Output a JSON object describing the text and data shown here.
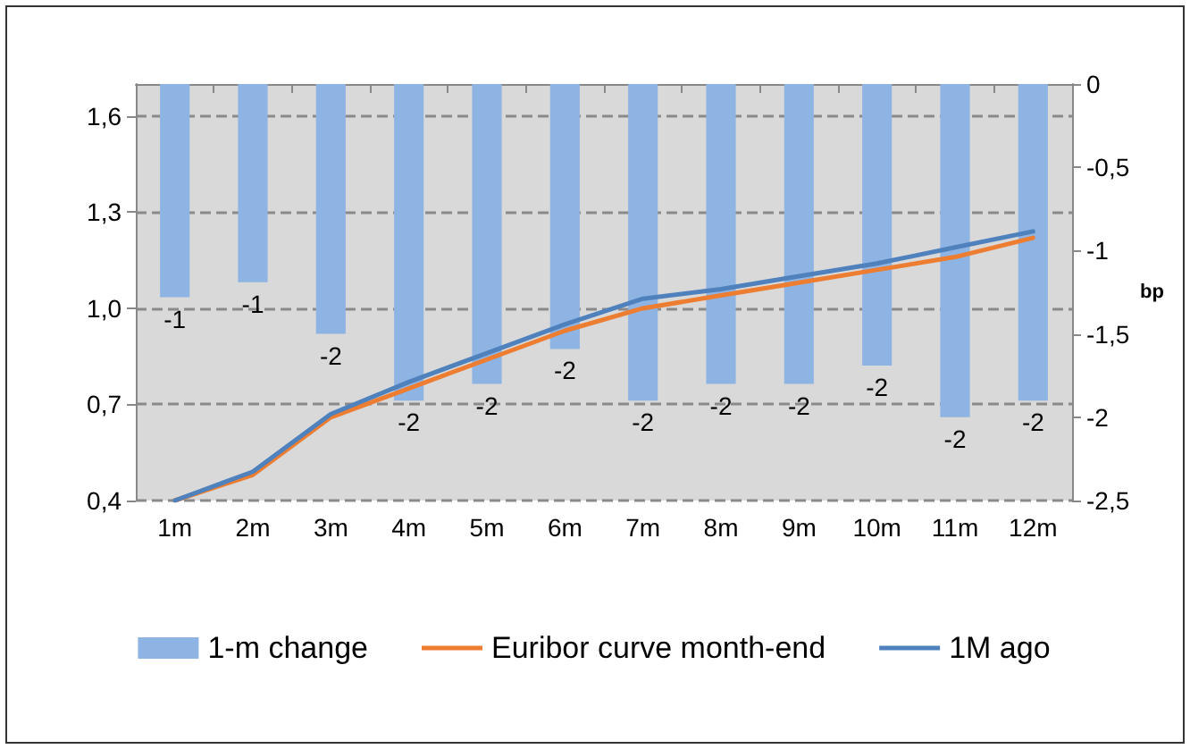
{
  "chart_data": {
    "type": "bar",
    "categories": [
      "1m",
      "2m",
      "3m",
      "4m",
      "5m",
      "6m",
      "7m",
      "8m",
      "9m",
      "10m",
      "11m",
      "12m"
    ],
    "series": [
      {
        "name": "1-m change",
        "axis": "y2",
        "color": "#8eb4e3",
        "values": [
          -1.28,
          -1.19,
          -1.5,
          -1.9,
          -1.8,
          -1.59,
          -1.9,
          -1.8,
          -1.8,
          -1.69,
          -2.0,
          -1.9
        ],
        "value_labels": [
          "-1",
          "-1",
          "-2",
          "-2",
          "-2",
          "-2",
          "-2",
          "-2",
          "-2",
          "-2",
          "-2",
          "-2"
        ]
      },
      {
        "name": "Euribor curve month-end",
        "type": "line",
        "color": "#ed7d31",
        "values": [
          0.4,
          0.48,
          0.66,
          0.75,
          0.84,
          0.93,
          1.0,
          1.04,
          1.08,
          1.12,
          1.16,
          1.22
        ]
      },
      {
        "name": "1M ago",
        "type": "line",
        "color": "#4f81bd",
        "values": [
          0.4,
          0.49,
          0.67,
          0.77,
          0.86,
          0.95,
          1.03,
          1.06,
          1.1,
          1.14,
          1.19,
          1.24
        ]
      }
    ],
    "ylim": [
      0.4,
      1.7
    ],
    "yticks": [
      {
        "value": 0.4,
        "label": "0,4"
      },
      {
        "value": 0.7,
        "label": "0,7"
      },
      {
        "value": 1.0,
        "label": "1,0"
      },
      {
        "value": 1.3,
        "label": "1,3"
      },
      {
        "value": 1.6,
        "label": "1,6"
      }
    ],
    "y2lim": [
      -2.5,
      0
    ],
    "y2ticks": [
      {
        "value": -2.5,
        "label": "-2,5"
      },
      {
        "value": -2,
        "label": "-2"
      },
      {
        "value": -1.5,
        "label": "-1,5"
      },
      {
        "value": -1,
        "label": "-1"
      },
      {
        "value": -0.5,
        "label": "-0,5"
      },
      {
        "value": 0,
        "label": "0"
      }
    ],
    "y2label": "bp",
    "grid": "y",
    "legend": "bottom",
    "marker": "none",
    "line_style": "solid"
  }
}
